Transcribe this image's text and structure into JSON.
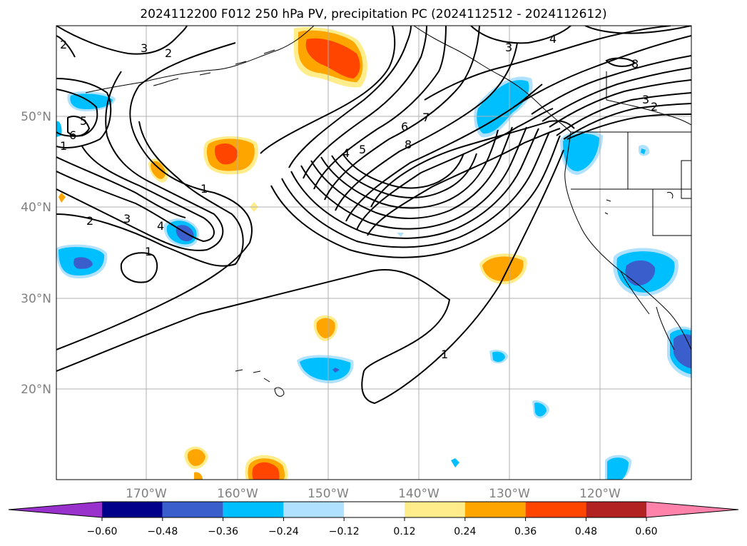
{
  "title": "2024112200 F012 250 hPa PV, precipitation PC (2024112512 - 2024112612)",
  "map": {
    "lat_labels": [
      "50°N",
      "40°N",
      "30°N",
      "20°N"
    ],
    "lon_labels": [
      "170°W",
      "160°W",
      "150°W",
      "140°W",
      "130°W",
      "120°W"
    ],
    "contour_labels": [
      "2",
      "3",
      "2",
      "5",
      "6",
      "1",
      "1",
      "2",
      "3",
      "4",
      "1",
      "4",
      "5",
      "6",
      "7",
      "8",
      "1",
      "3",
      "4",
      "8",
      "3",
      "2"
    ]
  },
  "colorbar": {
    "colors": [
      "#9932CC",
      "#00008B",
      "#3A5FCD",
      "#00BFFF",
      "#B0E2FF",
      "#FFFFFF",
      "#FFEC8B",
      "#FFA500",
      "#FF4500",
      "#B22222",
      "#FF82AB"
    ],
    "ticks": [
      "−0.60",
      "−0.48",
      "−0.36",
      "−0.24",
      "−0.12",
      "0.12",
      "0.24",
      "0.36",
      "0.48",
      "0.60"
    ]
  }
}
